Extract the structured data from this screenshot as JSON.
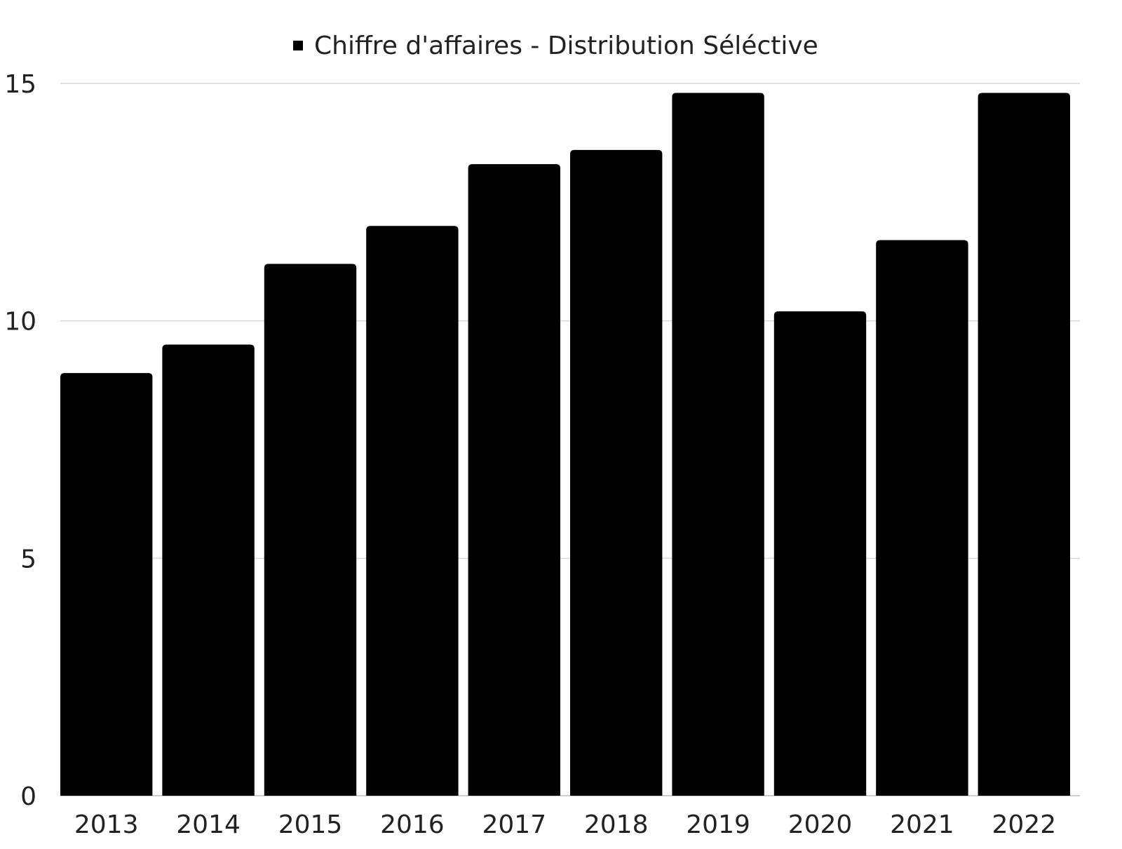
{
  "chart_data": {
    "type": "bar",
    "legend": "Chiffre d'affaires - Distribution Séléctive",
    "legend_position": "top-center",
    "categories": [
      "2013",
      "2014",
      "2015",
      "2016",
      "2017",
      "2018",
      "2019",
      "2020",
      "2021",
      "2022"
    ],
    "series": [
      {
        "name": "Chiffre d'affaires - Distribution Séléctive",
        "color": "#000000",
        "values": [
          8.9,
          9.5,
          11.2,
          12.0,
          13.3,
          13.6,
          14.8,
          10.2,
          11.7,
          14.8
        ]
      }
    ],
    "y_ticks": [
      "0",
      "5",
      "10",
      "15"
    ],
    "ylim": [
      0,
      15
    ],
    "grid": true,
    "gridline_color": "#d9d9d9",
    "bar_color": "#000000"
  }
}
